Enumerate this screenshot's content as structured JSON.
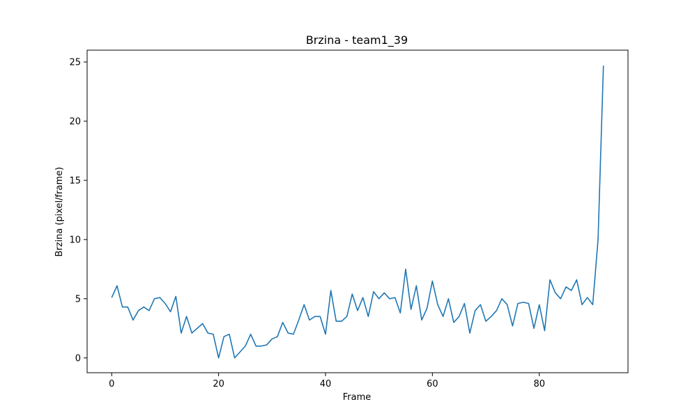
{
  "chart_data": {
    "type": "line",
    "title": "Brzina - team1_39",
    "xlabel": "Frame",
    "ylabel": "Brzina (pixel/frame)",
    "xlim": [
      -4.6,
      96.6
    ],
    "ylim": [
      -1.25,
      26.0
    ],
    "xticks": [
      0,
      20,
      40,
      60,
      80
    ],
    "yticks": [
      0,
      5,
      10,
      15,
      20,
      25
    ],
    "grid": false,
    "color": "#1f77b4",
    "series": [
      {
        "x": [
          0,
          1,
          2,
          3,
          4,
          5,
          6,
          7,
          8,
          9,
          10,
          11,
          12,
          13,
          14,
          15,
          16,
          17,
          18,
          19,
          20,
          21,
          22,
          23,
          24,
          25,
          26,
          27,
          28,
          29,
          30,
          31,
          32,
          33,
          34,
          35,
          36,
          37,
          38,
          39,
          40,
          41,
          42,
          43,
          44,
          45,
          46,
          47,
          48,
          49,
          50,
          51,
          52,
          53,
          54,
          55,
          56,
          57,
          58,
          59,
          60,
          61,
          62,
          63,
          64,
          65,
          66,
          67,
          68,
          69,
          70,
          71,
          72,
          73,
          74,
          75,
          76,
          77,
          78,
          79,
          80,
          81,
          82,
          83,
          84,
          85,
          86,
          87,
          88,
          89,
          90,
          91,
          92
        ],
        "y": [
          5.1,
          6.1,
          4.3,
          4.3,
          3.2,
          4.0,
          4.3,
          4.0,
          5.0,
          5.1,
          4.6,
          3.9,
          5.2,
          2.1,
          3.5,
          2.1,
          2.5,
          2.9,
          2.1,
          2.0,
          0.0,
          1.8,
          2.0,
          0.0,
          0.5,
          1.0,
          2.0,
          1.0,
          1.0,
          1.1,
          1.6,
          1.8,
          3.0,
          2.1,
          2.0,
          3.2,
          4.5,
          3.2,
          3.5,
          3.5,
          2.0,
          5.7,
          3.1,
          3.1,
          3.5,
          5.4,
          4.0,
          5.1,
          3.5,
          5.6,
          5.0,
          5.5,
          5.0,
          5.1,
          3.8,
          7.5,
          4.1,
          6.1,
          3.2,
          4.2,
          6.5,
          4.5,
          3.5,
          5.0,
          3.0,
          3.5,
          4.6,
          2.1,
          4.0,
          4.5,
          3.1,
          3.5,
          4.0,
          5.0,
          4.5,
          2.7,
          4.6,
          4.7,
          4.6,
          2.5,
          4.5,
          2.3,
          6.6,
          5.5,
          5.0,
          6.0,
          5.7,
          6.6,
          4.5,
          5.1,
          4.5,
          10.0,
          24.7
        ]
      }
    ]
  }
}
